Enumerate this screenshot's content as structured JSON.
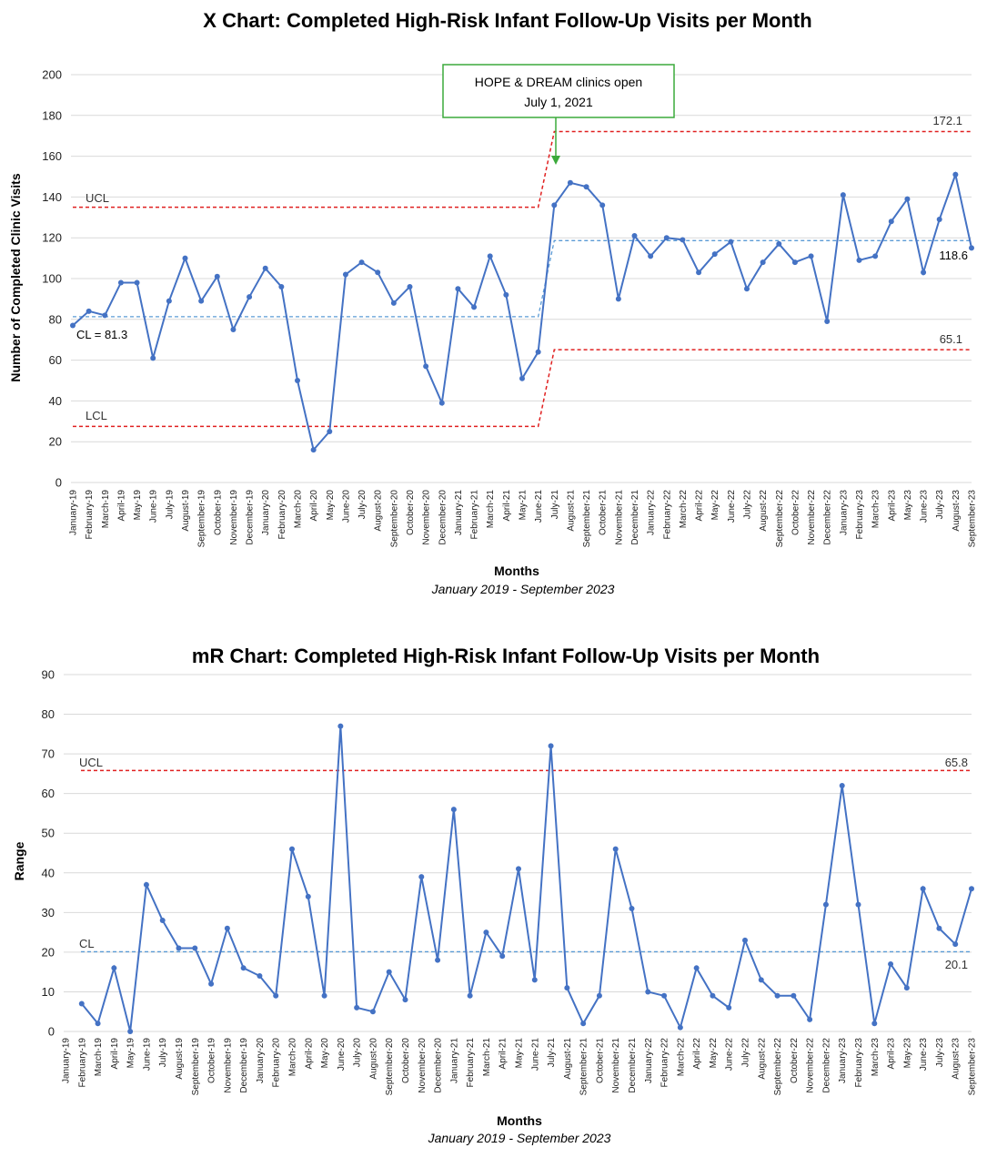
{
  "colors": {
    "series": "#4472C4",
    "limit": "#E02020",
    "center": "#5B9BD5",
    "grid": "#d9d9d9",
    "annotation": "#3BAA3B"
  },
  "chart_data": [
    {
      "type": "line",
      "title": "X Chart: Completed High-Risk Infant Follow-Up Visits per Month",
      "xlabel": "Months",
      "subtitle": "January 2019 - September 2023",
      "ylabel": "Number of Completed Clinic Visits",
      "ylim": [
        0,
        200
      ],
      "yticks": [
        "0",
        "20",
        "40",
        "60",
        "80",
        "100",
        "120",
        "140",
        "160",
        "180",
        "200"
      ],
      "grid": true,
      "categories": [
        "January-19",
        "February-19",
        "March-19",
        "April-19",
        "May-19",
        "June-19",
        "July-19",
        "August-19",
        "September-19",
        "October-19",
        "November-19",
        "December-19",
        "January-20",
        "February-20",
        "March-20",
        "April-20",
        "May-20",
        "June-20",
        "July-20",
        "August-20",
        "September-20",
        "October-20",
        "November-20",
        "December-20",
        "January-21",
        "February-21",
        "March-21",
        "April-21",
        "May-21",
        "June-21",
        "July-21",
        "August-21",
        "September-21",
        "October-21",
        "November-21",
        "December-21",
        "January-22",
        "February-22",
        "March-22",
        "April-22",
        "May-22",
        "June-22",
        "July-22",
        "August-22",
        "September-22",
        "October-22",
        "November-22",
        "December-22",
        "January-23",
        "February-23",
        "March-23",
        "April-23",
        "May-23",
        "June-23",
        "July-23",
        "August-23",
        "September-23"
      ],
      "values": [
        77,
        84,
        82,
        98,
        98,
        61,
        89,
        110,
        89,
        101,
        75,
        91,
        105,
        96,
        50,
        16,
        25,
        102,
        108,
        103,
        88,
        96,
        57,
        39,
        95,
        86,
        111,
        92,
        51,
        64,
        136,
        147,
        145,
        136,
        90,
        121,
        111,
        120,
        119,
        103,
        112,
        118,
        95,
        108,
        117,
        108,
        111,
        79,
        141,
        109,
        111,
        128,
        139,
        103,
        129,
        151,
        115
      ],
      "limits": {
        "phase1": {
          "cl": 81.3,
          "ucl": 135,
          "lcl": 27.5
        },
        "phase2": {
          "cl": 118.6,
          "ucl": 172.1,
          "lcl": 65.1
        }
      },
      "phase_change_index": 30,
      "labels": {
        "ucl": "UCL",
        "lcl": "LCL",
        "cl": "CL = 81.3",
        "ucl2": "172.1",
        "cl2": "118.6",
        "lcl2": "65.1"
      },
      "annotation": {
        "line1": "HOPE & DREAM clinics open",
        "line2": "July 1, 2021"
      }
    },
    {
      "type": "line",
      "title": "mR Chart: Completed High-Risk Infant Follow-Up Visits per Month",
      "xlabel": "Months",
      "subtitle": "January 2019 - September 2023",
      "ylabel": "Range",
      "ylim": [
        0,
        90
      ],
      "yticks": [
        "0",
        "10",
        "20",
        "30",
        "40",
        "50",
        "60",
        "70",
        "80",
        "90"
      ],
      "grid": true,
      "categories": [
        "January-19",
        "February-19",
        "March-19",
        "April-19",
        "May-19",
        "June-19",
        "July-19",
        "August-19",
        "September-19",
        "October-19",
        "November-19",
        "December-19",
        "January-20",
        "February-20",
        "March-20",
        "April-20",
        "May-20",
        "June-20",
        "July-20",
        "August-20",
        "September-20",
        "October-20",
        "November-20",
        "December-20",
        "January-21",
        "February-21",
        "March-21",
        "April-21",
        "May-21",
        "June-21",
        "July-21",
        "August-21",
        "September-21",
        "October-21",
        "November-21",
        "December-21",
        "January-22",
        "February-22",
        "March-22",
        "April-22",
        "May-22",
        "June-22",
        "July-22",
        "August-22",
        "September-22",
        "October-22",
        "November-22",
        "December-22",
        "January-23",
        "February-23",
        "March-23",
        "April-23",
        "May-23",
        "June-23",
        "July-23",
        "August-23",
        "September-23"
      ],
      "values": [
        null,
        7,
        2,
        16,
        0,
        37,
        28,
        21,
        21,
        12,
        26,
        16,
        14,
        9,
        46,
        34,
        9,
        77,
        6,
        5,
        15,
        8,
        39,
        18,
        56,
        9,
        25,
        19,
        41,
        13,
        72,
        11,
        2,
        9,
        46,
        31,
        10,
        9,
        1,
        16,
        9,
        6,
        23,
        13,
        9,
        9,
        3,
        32,
        62,
        32,
        2,
        17,
        11,
        36,
        26,
        22,
        36
      ],
      "limits": {
        "cl": 20.1,
        "ucl": 65.8
      },
      "labels": {
        "ucl": "UCL",
        "cl": "CL",
        "ucl_value": "65.8",
        "cl_value": "20.1"
      }
    }
  ]
}
